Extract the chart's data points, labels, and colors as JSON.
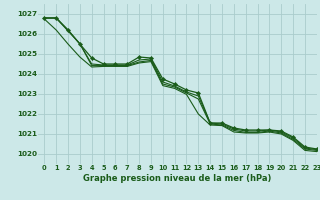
{
  "title": "Graphe pression niveau de la mer (hPa)",
  "bg_color": "#cce8e8",
  "grid_color": "#aacccc",
  "line_color": "#1a5c1a",
  "xlim": [
    -0.5,
    23
  ],
  "ylim": [
    1019.5,
    1027.5
  ],
  "yticks": [
    1020,
    1021,
    1022,
    1023,
    1024,
    1025,
    1026,
    1027
  ],
  "xticks": [
    0,
    1,
    2,
    3,
    4,
    5,
    6,
    7,
    8,
    9,
    10,
    11,
    12,
    13,
    14,
    15,
    16,
    17,
    18,
    19,
    20,
    21,
    22,
    23
  ],
  "series_with_markers": [
    [
      1026.8,
      1026.8,
      1026.2,
      1025.5,
      1024.8,
      1024.5,
      1024.5,
      1024.5,
      1024.85,
      1024.8,
      1023.75,
      1023.5,
      1023.2,
      1023.05,
      1021.55,
      1021.55,
      1021.3,
      1021.2,
      1021.2,
      1021.2,
      1021.15,
      1020.85,
      1020.35,
      1020.25
    ]
  ],
  "series_plain": [
    [
      1026.8,
      1026.8,
      1026.2,
      1025.5,
      1024.5,
      1024.45,
      1024.45,
      1024.45,
      1024.7,
      1024.75,
      1023.6,
      1023.4,
      1023.1,
      1022.9,
      1021.55,
      1021.5,
      1021.25,
      1021.15,
      1021.15,
      1021.2,
      1021.1,
      1020.8,
      1020.3,
      1020.22
    ],
    [
      1026.8,
      1026.8,
      1026.15,
      1025.52,
      1024.42,
      1024.42,
      1024.42,
      1024.42,
      1024.6,
      1024.68,
      1023.5,
      1023.35,
      1023.05,
      1022.75,
      1021.5,
      1021.45,
      1021.18,
      1021.08,
      1021.08,
      1021.15,
      1021.05,
      1020.73,
      1020.25,
      1020.18
    ],
    [
      1026.75,
      1026.2,
      1025.5,
      1024.85,
      1024.35,
      1024.38,
      1024.38,
      1024.38,
      1024.55,
      1024.62,
      1023.42,
      1023.28,
      1022.98,
      1022.0,
      1021.45,
      1021.42,
      1021.1,
      1021.05,
      1021.05,
      1021.1,
      1021.0,
      1020.68,
      1020.18,
      1020.12
    ]
  ]
}
